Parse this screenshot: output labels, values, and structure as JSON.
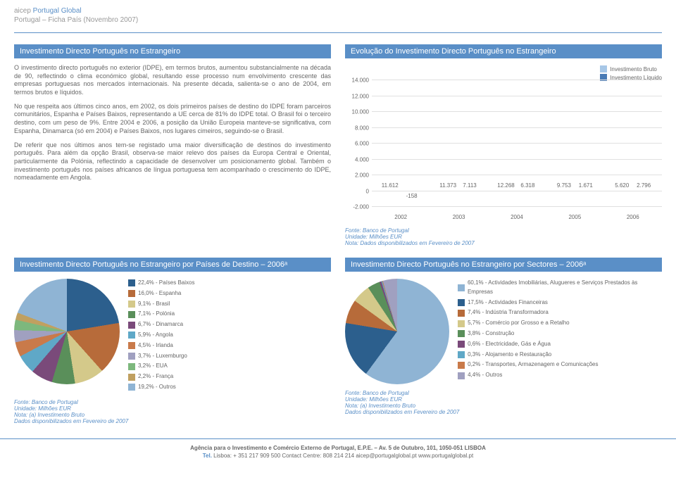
{
  "header": {
    "brand_prefix": "aicep",
    "brand_rest": " Portugal Global",
    "subtitle": "Portugal – Ficha País (Novembro 2007)"
  },
  "left": {
    "title": "Investimento Directo Português no Estrangeiro",
    "p1": "O investimento directo português no exterior (IDPE), em termos brutos, aumentou substancialmente na década de 90, reflectindo o clima económico global, resultando esse processo num envolvimento crescente das empresas portuguesas nos mercados internacionais. Na presente década, salienta-se o ano de 2004, em termos brutos e líquidos.",
    "p2": "No que respeita aos últimos cinco anos, em 2002, os dois primeiros países de destino do IDPE foram parceiros comunitários, Espanha e Países Baixos, representando a UE cerca de 81% do IDPE total. O Brasil foi o terceiro destino, com um peso de 9%. Entre 2004 e 2006, a posição da União Europeia manteve-se significativa, com Espanha, Dinamarca (só em 2004) e Países Baixos, nos lugares cimeiros, seguindo-se o Brasil.",
    "p3": "De referir que nos últimos anos tem-se registado uma maior diversificação de destinos do investimento português. Para além da opção Brasil, observa-se maior relevo dos países da Europa Central e Oriental, particularmente da Polónia, reflectindo a capacidade de desenvolver um posicionamento global. Também o investimento português nos países africanos de língua portuguesa tem acompanhado o crescimento do IDPE, nomeadamente em Angola."
  },
  "bar_chart": {
    "title": "Evolução do Investimento Directo Português no Estrangeiro",
    "legend": [
      {
        "label": "Investimento Bruto",
        "color": "#a7c7e7"
      },
      {
        "label": "Investimento Líquido",
        "color": "#4a7bb5"
      }
    ],
    "ylim_min": -2000,
    "ylim_max": 14000,
    "ytick_step": 2000,
    "yticks": [
      "14.000",
      "12.000",
      "10.000",
      "8.000",
      "6.000",
      "4.000",
      "2.000",
      "0",
      "-2.000"
    ],
    "categories": [
      "2002",
      "2003",
      "2004",
      "2005",
      "2006"
    ],
    "bruto": [
      11612,
      11373,
      12268,
      9753,
      5620
    ],
    "liquido": [
      -158,
      7113,
      6318,
      1671,
      2796
    ],
    "bruto_labels": [
      "11.612",
      "11.373",
      "12.268",
      "9.753",
      "5.620"
    ],
    "liquido_labels": [
      "-158",
      "7.113",
      "6.318",
      "1.671",
      "2.796"
    ],
    "bruto_color": "#a7c7e7",
    "liquido_color": "#4a7bb5",
    "source": "Fonte: Banco de Portugal\nUnidade: Milhões EUR\nNota: Dados disponibilizados em Fevereiro de 2007"
  },
  "pie_left": {
    "title": "Investimento Directo Português no Estrangeiro por Países de Destino – 2006ᵃ",
    "items": [
      {
        "pct": 22.4,
        "color": "#2c5f8d",
        "label": "22,4% - Países Baixos"
      },
      {
        "pct": 16.0,
        "color": "#b76b3a",
        "label": "16,0% - Espanha"
      },
      {
        "pct": 9.1,
        "color": "#d4c98a",
        "label": "9,1% - Brasil"
      },
      {
        "pct": 7.1,
        "color": "#5a8f5a",
        "label": "7,1% - Polónia"
      },
      {
        "pct": 6.7,
        "color": "#7a4a7a",
        "label": "6,7% - Dinamarca"
      },
      {
        "pct": 5.9,
        "color": "#5fa8c7",
        "label": "5,9% - Angola"
      },
      {
        "pct": 4.5,
        "color": "#c97a4a",
        "label": "4,5% - Irlanda"
      },
      {
        "pct": 3.7,
        "color": "#a0a0c0",
        "label": "3,7% - Luxemburgo"
      },
      {
        "pct": 3.2,
        "color": "#7db87d",
        "label": "3,2% - EUA"
      },
      {
        "pct": 2.2,
        "color": "#c0a060",
        "label": "2,2% - França"
      },
      {
        "pct": 19.2,
        "color": "#8fb4d4",
        "label": "19,2% - Outros"
      }
    ],
    "source": "Fonte: Banco de Portugal\nUnidade: Milhões EUR\nNota: (a) Investimento Bruto\n        Dados disponibilizados em Fevereiro de 2007"
  },
  "pie_right": {
    "title": "Investimento Directo Português no Estrangeiro por Sectores – 2006ᵃ",
    "items": [
      {
        "pct": 60.1,
        "color": "#8fb4d4",
        "label": "60,1% - Actividades Imobiliárias, Alugueres e Serviços Prestados às Empresas"
      },
      {
        "pct": 17.5,
        "color": "#2c5f8d",
        "label": "17,5% - Actividades Financeiras"
      },
      {
        "pct": 7.4,
        "color": "#b76b3a",
        "label": "7,4% - Indústria Transformadora"
      },
      {
        "pct": 5.7,
        "color": "#d4c98a",
        "label": "5,7% - Comércio por Grosso e a Retalho"
      },
      {
        "pct": 3.8,
        "color": "#5a8f5a",
        "label": "3,8% - Construção"
      },
      {
        "pct": 0.6,
        "color": "#7a4a7a",
        "label": "0,6% - Electricidade, Gás e Água"
      },
      {
        "pct": 0.3,
        "color": "#5fa8c7",
        "label": "0,3% - Alojamento e Restauração"
      },
      {
        "pct": 0.2,
        "color": "#c97a4a",
        "label": "0,2% - Transportes, Armazenagem e Comunicações"
      },
      {
        "pct": 4.4,
        "color": "#a0a0c0",
        "label": "4,4% - Outros"
      }
    ],
    "source": "Fonte: Banco de Portugal\nUnidade: Milhões EUR\nNota: (a) Investimento Bruto\n        Dados disponibilizados em Fevereiro de 2007"
  },
  "footer": {
    "line1": "Agência para o Investimento e Comércio Externo de Portugal, E.P.E. – Av. 5 de Outubro, 101, 1050-051 LISBOA",
    "line2_prefix": "Tel.",
    "line2": " Lisboa: + 351 217 909 500  Contact Centre: 808 214 214  aicep@portugalglobal.pt  www.portugalglobal.pt"
  }
}
